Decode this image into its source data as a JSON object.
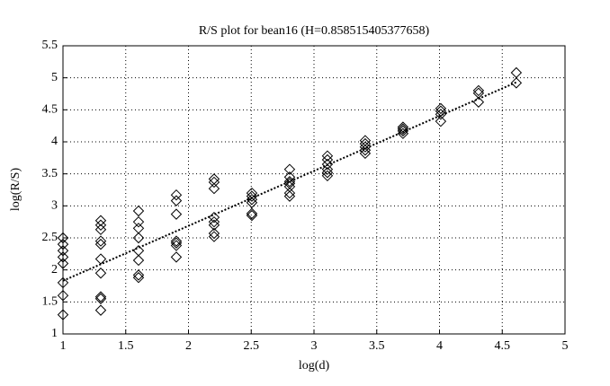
{
  "chart_data": {
    "type": "scatter",
    "title": "R/S plot for bean16 (H=0.858515405377658)",
    "x_label": "log(d)",
    "y_label": "log(R/S)",
    "x": [
      1,
      1,
      1,
      1,
      1,
      1,
      1,
      1,
      1.301,
      1.301,
      1.301,
      1.301,
      1.301,
      1.301,
      1.301,
      1.301,
      1.301,
      1.301,
      1.602,
      1.602,
      1.602,
      1.602,
      1.602,
      1.602,
      1.602,
      1.602,
      1.903,
      1.903,
      1.903,
      1.903,
      1.903,
      1.903,
      1.903,
      2.204,
      2.204,
      2.204,
      2.204,
      2.204,
      2.204,
      2.204,
      2.204,
      2.505,
      2.505,
      2.505,
      2.505,
      2.505,
      2.505,
      2.806,
      2.806,
      2.806,
      2.806,
      2.806,
      2.806,
      2.806,
      3.107,
      3.107,
      3.107,
      3.107,
      3.107,
      3.107,
      3.408,
      3.408,
      3.408,
      3.408,
      3.408,
      3.709,
      3.709,
      3.709,
      3.709,
      4.01,
      4.01,
      4.01,
      4.01,
      4.311,
      4.311,
      4.311,
      4.612,
      4.612
    ],
    "values": [
      2.5,
      2.4,
      2.3,
      2.2,
      2.1,
      1.8,
      1.6,
      1.3,
      2.77,
      2.7,
      2.63,
      2.45,
      2.4,
      2.17,
      1.95,
      1.58,
      1.55,
      1.37,
      2.92,
      2.75,
      2.65,
      2.5,
      2.3,
      2.15,
      1.92,
      1.88,
      3.17,
      3.08,
      2.87,
      2.45,
      2.42,
      2.38,
      2.2,
      3.42,
      3.37,
      3.27,
      2.82,
      2.75,
      2.7,
      2.57,
      2.52,
      3.2,
      3.15,
      3.1,
      3.05,
      2.88,
      2.85,
      3.57,
      3.45,
      3.38,
      3.35,
      3.3,
      3.2,
      3.15,
      3.78,
      3.72,
      3.65,
      3.57,
      3.52,
      3.47,
      4.02,
      3.97,
      3.92,
      3.87,
      3.82,
      4.23,
      4.2,
      4.17,
      4.13,
      4.52,
      4.48,
      4.43,
      4.32,
      4.8,
      4.76,
      4.62,
      5.08,
      4.92
    ],
    "color": "#000000",
    "fit_line": {
      "x": [
        1,
        4.612
      ],
      "y": [
        1.83,
        4.93
      ],
      "color": "#000000",
      "style": "dotted"
    },
    "xlim": [
      1,
      5
    ],
    "ylim": [
      1,
      5.5
    ],
    "xticks": [
      1,
      1.5,
      2,
      2.5,
      3,
      3.5,
      4,
      4.5,
      5
    ],
    "yticks": [
      1,
      1.5,
      2,
      2.5,
      3,
      3.5,
      4,
      4.5,
      5,
      5.5
    ],
    "grid": true
  }
}
